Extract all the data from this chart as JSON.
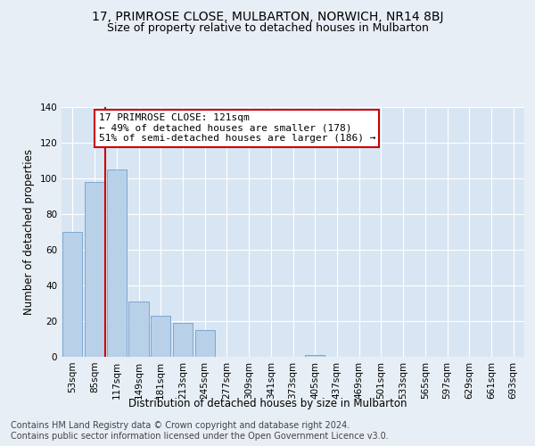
{
  "title": "17, PRIMROSE CLOSE, MULBARTON, NORWICH, NR14 8BJ",
  "subtitle": "Size of property relative to detached houses in Mulbarton",
  "xlabel": "Distribution of detached houses by size in Mulbarton",
  "ylabel": "Number of detached properties",
  "footer_line1": "Contains HM Land Registry data © Crown copyright and database right 2024.",
  "footer_line2": "Contains public sector information licensed under the Open Government Licence v3.0.",
  "categories": [
    "53sqm",
    "85sqm",
    "117sqm",
    "149sqm",
    "181sqm",
    "213sqm",
    "245sqm",
    "277sqm",
    "309sqm",
    "341sqm",
    "373sqm",
    "405sqm",
    "437sqm",
    "469sqm",
    "501sqm",
    "533sqm",
    "565sqm",
    "597sqm",
    "629sqm",
    "661sqm",
    "693sqm"
  ],
  "values": [
    70,
    98,
    105,
    31,
    23,
    19,
    15,
    0,
    0,
    0,
    0,
    1,
    0,
    0,
    0,
    0,
    0,
    0,
    0,
    0,
    0
  ],
  "bar_color": "#b8d0e8",
  "vline_x": 1.5,
  "vline_color": "#cc0000",
  "annotation_text": "17 PRIMROSE CLOSE: 121sqm\n← 49% of detached houses are smaller (178)\n51% of semi-detached houses are larger (186) →",
  "annotation_box_color": "#ffffff",
  "annotation_border_color": "#cc0000",
  "ylim": [
    0,
    140
  ],
  "yticks": [
    0,
    20,
    40,
    60,
    80,
    100,
    120,
    140
  ],
  "background_color": "#e8eef5",
  "plot_bg_color": "#d8e6f3",
  "grid_color": "#ffffff",
  "title_fontsize": 10,
  "subtitle_fontsize": 9,
  "label_fontsize": 8.5,
  "tick_fontsize": 7.5,
  "footer_fontsize": 7
}
